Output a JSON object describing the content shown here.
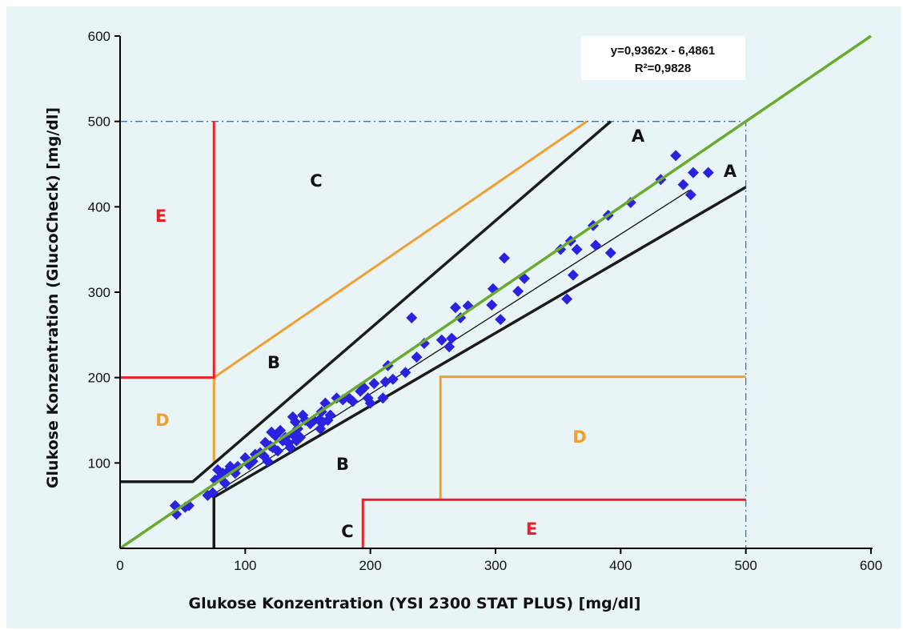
{
  "chart_data": {
    "type": "scatter",
    "title": "",
    "xlabel": "Glukose Konzentration (YSI 2300 STAT PLUS) [mg/dl]",
    "ylabel": "Glukose Konzentration (GlucoCheck) [mg/dl]",
    "xlim": [
      0,
      600
    ],
    "ylim": [
      0,
      600
    ],
    "x_ticks": [
      "0",
      "100",
      "200",
      "300",
      "400",
      "500",
      "600"
    ],
    "y_ticks": [
      "100",
      "200",
      "300",
      "400",
      "500",
      "600"
    ],
    "grid": false,
    "regression": {
      "equation": "y=0,9362x - 6,4861",
      "r2": "R²=0,9828",
      "slope": 0.9362,
      "intercept": -6.4861
    },
    "points": [
      [
        44,
        50
      ],
      [
        45,
        40
      ],
      [
        52,
        48
      ],
      [
        55,
        50
      ],
      [
        70,
        62
      ],
      [
        74,
        65
      ],
      [
        76,
        80
      ],
      [
        78,
        92
      ],
      [
        80,
        83
      ],
      [
        82,
        88
      ],
      [
        84,
        76
      ],
      [
        86,
        90
      ],
      [
        88,
        96
      ],
      [
        90,
        92
      ],
      [
        92,
        88
      ],
      [
        94,
        96
      ],
      [
        100,
        106
      ],
      [
        103,
        98
      ],
      [
        106,
        102
      ],
      [
        108,
        110
      ],
      [
        112,
        112
      ],
      [
        115,
        108
      ],
      [
        116,
        124
      ],
      [
        118,
        102
      ],
      [
        120,
        120
      ],
      [
        121,
        136
      ],
      [
        122,
        118
      ],
      [
        124,
        132
      ],
      [
        126,
        114
      ],
      [
        128,
        138
      ],
      [
        130,
        126
      ],
      [
        132,
        130
      ],
      [
        134,
        124
      ],
      [
        136,
        118
      ],
      [
        138,
        154
      ],
      [
        139,
        132
      ],
      [
        140,
        148
      ],
      [
        141,
        126
      ],
      [
        142,
        140
      ],
      [
        144,
        130
      ],
      [
        146,
        156
      ],
      [
        148,
        150
      ],
      [
        152,
        146
      ],
      [
        155,
        150
      ],
      [
        159,
        150
      ],
      [
        160,
        140
      ],
      [
        161,
        160
      ],
      [
        162,
        148
      ],
      [
        164,
        170
      ],
      [
        166,
        150
      ],
      [
        168,
        156
      ],
      [
        173,
        176
      ],
      [
        178,
        174
      ],
      [
        183,
        176
      ],
      [
        186,
        172
      ],
      [
        192,
        184
      ],
      [
        195,
        188
      ],
      [
        198,
        176
      ],
      [
        200,
        170
      ],
      [
        203,
        193
      ],
      [
        210,
        176
      ],
      [
        212,
        195
      ],
      [
        214,
        214
      ],
      [
        218,
        198
      ],
      [
        228,
        206
      ],
      [
        233,
        270
      ],
      [
        237,
        224
      ],
      [
        243,
        240
      ],
      [
        257,
        244
      ],
      [
        263,
        236
      ],
      [
        265,
        246
      ],
      [
        268,
        282
      ],
      [
        272,
        270
      ],
      [
        278,
        284
      ],
      [
        297,
        285
      ],
      [
        298,
        304
      ],
      [
        304,
        268
      ],
      [
        307,
        340
      ],
      [
        318,
        301
      ],
      [
        323,
        316
      ],
      [
        352,
        350
      ],
      [
        357,
        292
      ],
      [
        360,
        360
      ],
      [
        362,
        320
      ],
      [
        365,
        350
      ],
      [
        378,
        378
      ],
      [
        380,
        355
      ],
      [
        390,
        390
      ],
      [
        392,
        346
      ],
      [
        408,
        405
      ],
      [
        432,
        432
      ],
      [
        444,
        460
      ],
      [
        450,
        426
      ],
      [
        456,
        414
      ],
      [
        458,
        440
      ],
      [
        470,
        440
      ]
    ],
    "zones": {
      "A_upper": "A",
      "A_lower": "A",
      "B_upper": "B",
      "B_lower": "B",
      "C_upper": "C",
      "C_lower": "C",
      "D_upper": "D",
      "D_lower": "D",
      "E_upper": "E",
      "E_lower": "E"
    },
    "zone_boundaries": {
      "A_upper": [
        [
          0,
          78
        ],
        [
          58,
          78
        ],
        [
          392,
          500
        ]
      ],
      "A_lower": [
        [
          75,
          0
        ],
        [
          75,
          60
        ],
        [
          500,
          423
        ]
      ],
      "B_upper": [
        [
          75,
          200
        ],
        [
          373,
          500
        ]
      ],
      "B_lower_vertical": [
        [
          75,
          200
        ],
        [
          75,
          100
        ]
      ],
      "D_lower": [
        [
          256,
          57
        ],
        [
          256,
          201
        ],
        [
          500,
          201
        ]
      ],
      "E_upper": [
        [
          0,
          200
        ],
        [
          75,
          200
        ],
        [
          75,
          500
        ]
      ],
      "E_lower": [
        [
          194,
          0
        ],
        [
          194,
          57
        ],
        [
          500,
          57
        ]
      ],
      "guide": [
        [
          0,
          500
        ],
        [
          500,
          500
        ],
        [
          500,
          0
        ]
      ]
    },
    "colors": {
      "points": "#2a22e0",
      "identity_line": "#6aab2f",
      "regression_line": "#000000",
      "zone_A": "#1c1c1c",
      "zone_B": "#f0a030",
      "zone_E": "#e8202a",
      "guide": "#2f78c0",
      "label_dark": "#111111",
      "label_D": "#f0a030",
      "label_E": "#e8202a"
    }
  }
}
